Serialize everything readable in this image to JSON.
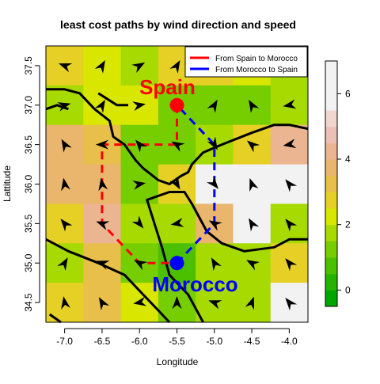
{
  "chart_data": {
    "type": "heatmap",
    "title": "least cost paths by wind direction and speed",
    "xlabel": "Longitude",
    "ylabel": "Lattitude",
    "xlim": [
      -7.25,
      -3.75
    ],
    "ylim": [
      34.25,
      37.75
    ],
    "x_ticks": [
      "-7.0",
      "-6.5",
      "-6.0",
      "-5.5",
      "-5.0",
      "-4.5",
      "-4.0"
    ],
    "x_tick_values": [
      -7.0,
      -6.5,
      -6.0,
      -5.5,
      -5.0,
      -4.5,
      -4.0
    ],
    "y_ticks": [
      "34.5",
      "35.0",
      "35.5",
      "36.0",
      "36.5",
      "37.0",
      "37.5"
    ],
    "y_tick_values": [
      34.5,
      35.0,
      35.5,
      36.0,
      36.5,
      37.0,
      37.5
    ],
    "colorbar": {
      "ticks": [
        "0",
        "2",
        "4",
        "6"
      ],
      "tick_values": [
        0,
        2,
        4,
        6
      ],
      "range": [
        -0.5,
        7.0
      ],
      "band_width": 0.5,
      "colors": [
        "#00a600",
        "#24b300",
        "#4bc000",
        "#76cd00",
        "#a6da00",
        "#d9e600",
        "#e6d025",
        "#e8bf4a",
        "#eab56d",
        "#ebb592",
        "#edc0b6",
        "#f0d6cf",
        "#f2f2f2",
        "#f2f2f2",
        "#f2f2f2"
      ]
    },
    "x_centers": [
      -7.0,
      -6.5,
      -6.0,
      -5.5,
      -5.0,
      -4.5,
      -4.0
    ],
    "y_centers": [
      37.5,
      37.0,
      36.5,
      36.0,
      35.5,
      35.0,
      34.5
    ],
    "speed": [
      [
        2.5,
        2.0,
        1.5,
        2.5,
        2.5,
        2.0,
        1.5
      ],
      [
        1.5,
        2.0,
        2.0,
        1.0,
        1.0,
        1.0,
        1.5
      ],
      [
        3.5,
        3.0,
        1.0,
        1.0,
        1.5,
        2.5,
        4.0
      ],
      [
        3.5,
        3.5,
        1.0,
        2.5,
        5.5,
        6.5,
        6.5
      ],
      [
        2.5,
        4.0,
        1.5,
        1.5,
        3.5,
        6.5,
        1.5
      ],
      [
        1.5,
        3.0,
        1.0,
        0.5,
        1.5,
        1.5,
        2.5
      ],
      [
        2.5,
        3.0,
        2.0,
        1.0,
        1.5,
        1.5,
        5.5
      ]
    ],
    "wind_direction_deg": [
      [
        160,
        60,
        30,
        60,
        170,
        150,
        100
      ],
      [
        15,
        60,
        10,
        30,
        60,
        120,
        190
      ],
      [
        120,
        180,
        130,
        150,
        300,
        140,
        190
      ],
      [
        100,
        100,
        10,
        300,
        310,
        110,
        130
      ],
      [
        130,
        160,
        310,
        190,
        150,
        120,
        130
      ],
      [
        60,
        160,
        150,
        310,
        120,
        150,
        130
      ],
      [
        100,
        120,
        190,
        90,
        160,
        70,
        130
      ]
    ],
    "series": [
      {
        "name": "From Spain to Morocco",
        "color": "#ff0000",
        "lon": [
          -5.5,
          -5.5,
          -6.5,
          -6.5,
          -6.5,
          -6.0,
          -5.5
        ],
        "lat": [
          37.0,
          36.5,
          36.5,
          36.0,
          35.5,
          35.0,
          35.0
        ]
      },
      {
        "name": "From Morocco to Spain",
        "color": "#0000ff",
        "lon": [
          -5.5,
          -5.0,
          -5.0,
          -5.0,
          -5.0,
          -5.5
        ],
        "lat": [
          35.0,
          35.5,
          36.0,
          36.5,
          36.5,
          37.0
        ]
      }
    ],
    "points": [
      {
        "label": "Spain",
        "lon": -5.5,
        "lat": 37.0,
        "color": "#ff0000"
      },
      {
        "label": "Morocco",
        "lon": -5.5,
        "lat": 35.0,
        "color": "#0000ff"
      }
    ],
    "coastlines": [
      [
        [
          -7.25,
          37.2
        ],
        [
          -7.0,
          37.2
        ],
        [
          -6.8,
          37.15
        ],
        [
          -6.6,
          36.95
        ],
        [
          -6.4,
          36.8
        ],
        [
          -6.35,
          36.6
        ],
        [
          -6.2,
          36.5
        ],
        [
          -6.05,
          36.3
        ],
        [
          -5.95,
          36.2
        ],
        [
          -5.75,
          36.05
        ],
        [
          -5.6,
          36.0
        ],
        [
          -5.45,
          36.1
        ],
        [
          -5.35,
          36.15
        ],
        [
          -5.3,
          36.25
        ],
        [
          -5.15,
          36.4
        ],
        [
          -4.9,
          36.5
        ],
        [
          -4.5,
          36.65
        ],
        [
          -4.2,
          36.75
        ],
        [
          -4.0,
          36.75
        ],
        [
          -3.75,
          36.7
        ]
      ],
      [
        [
          -7.25,
          35.3
        ],
        [
          -6.95,
          35.15
        ],
        [
          -6.55,
          35.0
        ],
        [
          -6.2,
          34.85
        ],
        [
          -5.95,
          34.6
        ],
        [
          -5.75,
          34.4
        ],
        [
          -5.6,
          34.25
        ]
      ],
      [
        [
          -5.15,
          34.25
        ],
        [
          -5.35,
          34.6
        ],
        [
          -5.6,
          34.85
        ],
        [
          -5.7,
          35.2
        ],
        [
          -5.8,
          35.5
        ],
        [
          -5.9,
          35.8
        ],
        [
          -5.6,
          35.9
        ],
        [
          -5.4,
          35.9
        ],
        [
          -5.3,
          35.75
        ],
        [
          -5.1,
          35.4
        ],
        [
          -4.9,
          35.25
        ],
        [
          -4.6,
          35.15
        ],
        [
          -4.2,
          35.2
        ],
        [
          -4.0,
          35.3
        ],
        [
          -3.75,
          35.3
        ]
      ],
      [
        [
          -7.25,
          36.95
        ],
        [
          -7.1,
          37.0
        ],
        [
          -6.95,
          36.95
        ]
      ],
      [
        [
          -6.55,
          37.15
        ],
        [
          -6.3,
          37.0
        ],
        [
          -6.15,
          37.0
        ]
      ],
      [
        [
          -7.2,
          34.35
        ],
        [
          -7.05,
          34.25
        ]
      ]
    ]
  }
}
